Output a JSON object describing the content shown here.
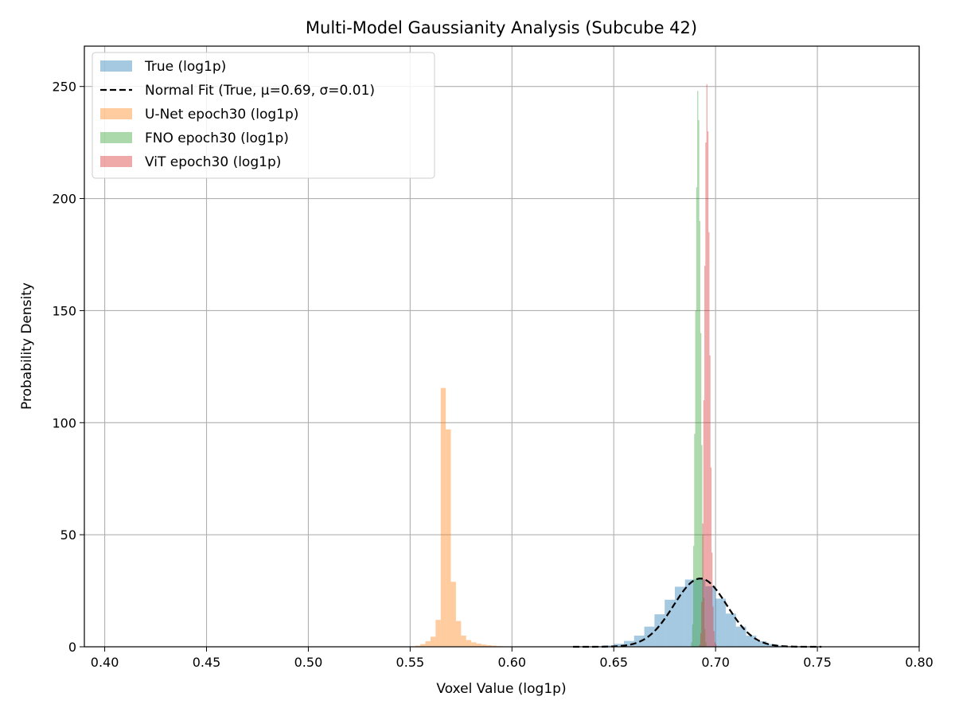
{
  "chart_data": {
    "type": "histogram",
    "title": "Multi-Model Gaussianity Analysis (Subcube 42)",
    "xlabel": "Voxel Value (log1p)",
    "ylabel": "Probability Density",
    "xlim": [
      0.39,
      0.8
    ],
    "ylim": [
      0,
      268
    ],
    "xticks": [
      0.4,
      0.45,
      0.5,
      0.55,
      0.6,
      0.65,
      0.7,
      0.75,
      0.8
    ],
    "xtick_labels": [
      "0.40",
      "0.45",
      "0.50",
      "0.55",
      "0.60",
      "0.65",
      "0.70",
      "0.75",
      "0.80"
    ],
    "yticks": [
      0,
      50,
      100,
      150,
      200,
      250
    ],
    "ytick_labels": [
      "0",
      "50",
      "100",
      "150",
      "200",
      "250"
    ],
    "grid": true,
    "legend_position": "top-left",
    "series": [
      {
        "name": "True (log1p)",
        "kind": "histogram",
        "color": "#1f77b4",
        "alpha": 0.4,
        "bin_edges": [
          0.63,
          0.635,
          0.64,
          0.645,
          0.65,
          0.655,
          0.66,
          0.665,
          0.67,
          0.675,
          0.68,
          0.685,
          0.69,
          0.695,
          0.7,
          0.705,
          0.71,
          0.715,
          0.72,
          0.725,
          0.73,
          0.735,
          0.74,
          0.745,
          0.75
        ],
        "densities": [
          0.05,
          0.1,
          0.25,
          0.6,
          1.3,
          2.6,
          5.0,
          9.0,
          14.5,
          21.0,
          26.8,
          30.0,
          30.1,
          27.0,
          21.5,
          14.8,
          9.0,
          5.0,
          2.5,
          1.2,
          0.55,
          0.25,
          0.1,
          0.04
        ]
      },
      {
        "name": "U-Net epoch30 (log1p)",
        "kind": "histogram",
        "color": "#ff7f0e",
        "alpha": 0.4,
        "bin_edges": [
          0.55,
          0.5525,
          0.555,
          0.5575,
          0.56,
          0.5625,
          0.565,
          0.5675,
          0.57,
          0.5725,
          0.575,
          0.5775,
          0.58,
          0.5825,
          0.585,
          0.5875,
          0.59,
          0.5925,
          0.595,
          0.5975,
          0.6,
          0.6025
        ],
        "densities": [
          0.2,
          0.5,
          1.2,
          2.5,
          4.5,
          12.0,
          115.5,
          97.0,
          29.0,
          11.5,
          5.0,
          3.0,
          2.0,
          1.4,
          1.0,
          0.7,
          0.5,
          0.3,
          0.2,
          0.1,
          0.05
        ]
      },
      {
        "name": "FNO epoch30 (log1p)",
        "kind": "histogram",
        "color": "#2ca02c",
        "alpha": 0.4,
        "bin_edges": [
          0.688,
          0.6885,
          0.689,
          0.6895,
          0.69,
          0.6905,
          0.691,
          0.6915,
          0.692,
          0.6925,
          0.693,
          0.6935,
          0.694,
          0.6945,
          0.695,
          0.6955
        ],
        "densities": [
          2,
          10,
          45,
          95,
          150,
          205,
          248,
          235,
          190,
          140,
          90,
          50,
          22,
          8,
          2
        ]
      },
      {
        "name": "ViT epoch30 (log1p)",
        "kind": "histogram",
        "color": "#d62728",
        "alpha": 0.4,
        "bin_edges": [
          0.692,
          0.6925,
          0.693,
          0.6935,
          0.694,
          0.6945,
          0.695,
          0.6955,
          0.696,
          0.6965,
          0.697,
          0.6975,
          0.698,
          0.6985,
          0.699,
          0.6995,
          0.7,
          0.7005
        ],
        "densities": [
          1,
          6,
          20,
          55,
          110,
          170,
          225,
          251,
          230,
          185,
          130,
          80,
          42,
          18,
          7,
          2,
          1
        ]
      },
      {
        "name": "Normal Fit (True, μ=0.69, σ=0.01)",
        "kind": "line",
        "color": "#000000",
        "dash": "dashed",
        "mu": 0.6925,
        "sigma": 0.0131,
        "x_range": [
          0.63,
          0.752
        ]
      }
    ],
    "legend_order": [
      0,
      4,
      1,
      2,
      3
    ]
  }
}
